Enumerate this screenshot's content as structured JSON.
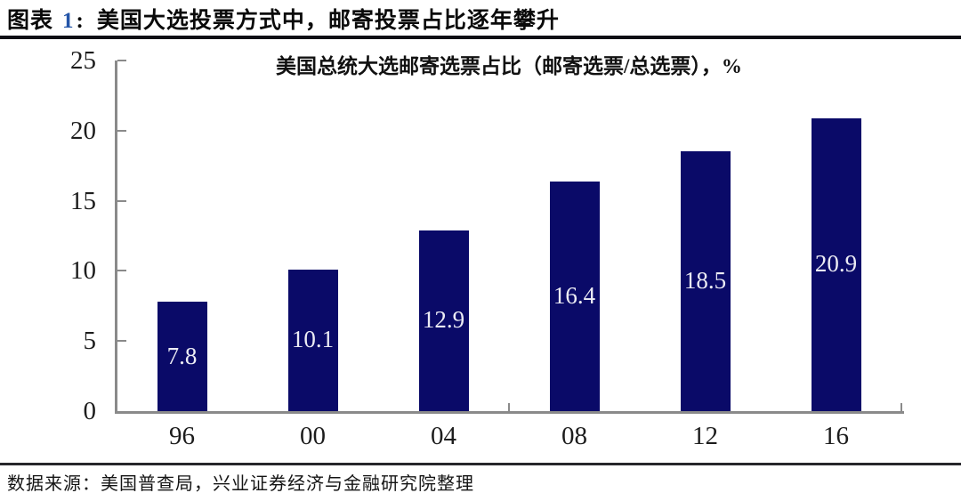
{
  "header": {
    "prefix": "图表",
    "number": "1",
    "colon": ":",
    "text": "美国大选投票方式中，邮寄投票占比逐年攀升"
  },
  "source": {
    "text": "数据来源：美国普查局，兴业证券经济与金融研究院整理"
  },
  "colors": {
    "figure_number_blue": "#2455a8",
    "bar_fill": "#0a0a68",
    "bar_label": "#ececf4",
    "axis": "#8a8a8a"
  },
  "chart_data": {
    "type": "bar",
    "title": "美国总统大选邮寄选票占比（邮寄选票/总选票），%",
    "categories": [
      "96",
      "00",
      "04",
      "08",
      "12",
      "16"
    ],
    "values": [
      7.8,
      10.1,
      12.9,
      16.4,
      18.5,
      20.9
    ],
    "xlabel": "",
    "ylabel": "",
    "ylim": [
      0,
      25
    ],
    "yticks": [
      0,
      5,
      10,
      15,
      20,
      25
    ],
    "grid": false,
    "legend": false,
    "data_label_position": "center",
    "bar_color": "#0a0a68",
    "data_label_color": "#ececf4"
  }
}
